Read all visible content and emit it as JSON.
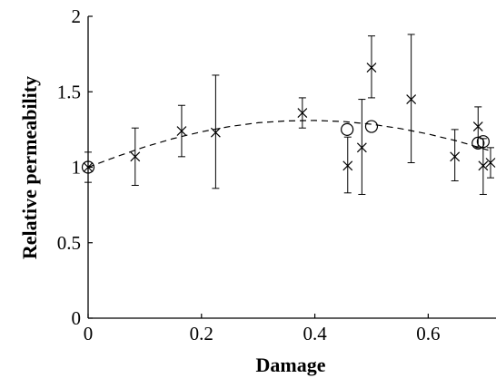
{
  "chart_data": {
    "type": "scatter",
    "title": "",
    "xlabel": "Damage",
    "ylabel": "Relative permeability",
    "xlim": [
      0,
      0.71
    ],
    "ylim": [
      0,
      2
    ],
    "x_ticks": [
      0,
      0.2,
      0.4,
      0.6
    ],
    "x_tick_labels": [
      "0",
      "0.2",
      "0.4",
      "0.6"
    ],
    "y_ticks": [
      0,
      0.5,
      1,
      1.5,
      2
    ],
    "y_tick_labels": [
      "0",
      "0.5",
      "1",
      "1.5",
      "2"
    ],
    "grid": false,
    "legend": "none",
    "series": [
      {
        "marker": "x",
        "color": "#000000",
        "points": [
          {
            "x": 0.0,
            "y": 1.0,
            "err_low": 0.9,
            "err_high": 1.1
          },
          {
            "x": 0.083,
            "y": 1.07,
            "err_low": 0.88,
            "err_high": 1.26
          },
          {
            "x": 0.165,
            "y": 1.24,
            "err_low": 1.07,
            "err_high": 1.41
          },
          {
            "x": 0.225,
            "y": 1.23,
            "err_low": 0.86,
            "err_high": 1.61
          },
          {
            "x": 0.378,
            "y": 1.36,
            "err_low": 1.26,
            "err_high": 1.46
          },
          {
            "x": 0.458,
            "y": 1.01,
            "err_low": 0.83,
            "err_high": 1.2
          },
          {
            "x": 0.483,
            "y": 1.13,
            "err_low": 0.82,
            "err_high": 1.45
          },
          {
            "x": 0.5,
            "y": 1.66,
            "err_low": 1.46,
            "err_high": 1.87
          },
          {
            "x": 0.57,
            "y": 1.45,
            "err_low": 1.03,
            "err_high": 1.88
          },
          {
            "x": 0.647,
            "y": 1.07,
            "err_low": 0.91,
            "err_high": 1.25
          },
          {
            "x": 0.688,
            "y": 1.27,
            "err_low": 1.13,
            "err_high": 1.4
          },
          {
            "x": 0.697,
            "y": 1.01,
            "err_low": 0.82,
            "err_high": 1.19
          },
          {
            "x": 0.71,
            "y": 1.03,
            "err_low": 0.93,
            "err_high": 1.13
          }
        ]
      },
      {
        "marker": "o",
        "color": "#000000",
        "points": [
          {
            "x": 0.0,
            "y": 1.0
          },
          {
            "x": 0.457,
            "y": 1.25
          },
          {
            "x": 0.5,
            "y": 1.27
          },
          {
            "x": 0.688,
            "y": 1.16
          },
          {
            "x": 0.697,
            "y": 1.17
          }
        ]
      }
    ],
    "fit_curve": {
      "style": "dashed",
      "color": "#000000",
      "x": [
        0,
        0.05,
        0.1,
        0.15,
        0.2,
        0.25,
        0.3,
        0.35,
        0.4,
        0.45,
        0.5,
        0.55,
        0.6,
        0.65,
        0.7,
        0.71
      ],
      "y": [
        1.0,
        1.07,
        1.135,
        1.19,
        1.235,
        1.27,
        1.295,
        1.307,
        1.31,
        1.303,
        1.285,
        1.257,
        1.22,
        1.175,
        1.12,
        1.108
      ]
    }
  }
}
